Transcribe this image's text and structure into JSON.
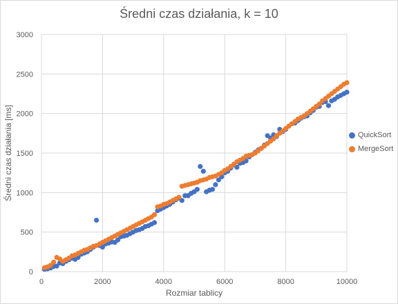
{
  "chart_data": {
    "type": "scatter",
    "title": "Średni czas działania, k = 10",
    "xlabel": "Rozmiar tablicy",
    "ylabel": "Średni czas działania [ms]",
    "xlim": [
      0,
      10000
    ],
    "ylim": [
      0,
      3000
    ],
    "xticks": [
      0,
      2000,
      4000,
      6000,
      8000,
      10000
    ],
    "yticks": [
      0,
      500,
      1000,
      1500,
      2000,
      2500,
      3000
    ],
    "xtick_labels": [
      "0",
      "2000",
      "4000",
      "6000",
      "8000",
      "10000"
    ],
    "ytick_labels": [
      "0",
      "500",
      "1000",
      "1500",
      "2000",
      "2500",
      "3000"
    ],
    "grid": "major, both axes",
    "legend_position": "right",
    "series": [
      {
        "name": "QuickSort",
        "color": "#4472c4",
        "points": [
          [
            100,
            30
          ],
          [
            200,
            35
          ],
          [
            300,
            45
          ],
          [
            400,
            65
          ],
          [
            500,
            70
          ],
          [
            600,
            110
          ],
          [
            700,
            100
          ],
          [
            800,
            130
          ],
          [
            900,
            150
          ],
          [
            1000,
            170
          ],
          [
            1100,
            155
          ],
          [
            1200,
            180
          ],
          [
            1300,
            220
          ],
          [
            1400,
            235
          ],
          [
            1500,
            250
          ],
          [
            1600,
            280
          ],
          [
            1700,
            310
          ],
          [
            1800,
            650
          ],
          [
            1900,
            330
          ],
          [
            2000,
            310
          ],
          [
            2100,
            350
          ],
          [
            2200,
            360
          ],
          [
            2300,
            375
          ],
          [
            2400,
            370
          ],
          [
            2500,
            400
          ],
          [
            2600,
            440
          ],
          [
            2700,
            450
          ],
          [
            2800,
            460
          ],
          [
            2900,
            480
          ],
          [
            3000,
            500
          ],
          [
            3100,
            520
          ],
          [
            3200,
            530
          ],
          [
            3300,
            545
          ],
          [
            3400,
            570
          ],
          [
            3500,
            580
          ],
          [
            3600,
            600
          ],
          [
            3700,
            620
          ],
          [
            3800,
            770
          ],
          [
            3900,
            790
          ],
          [
            4000,
            810
          ],
          [
            4100,
            830
          ],
          [
            4200,
            850
          ],
          [
            4300,
            880
          ],
          [
            4400,
            910
          ],
          [
            4500,
            930
          ],
          [
            4600,
            900
          ],
          [
            4700,
            960
          ],
          [
            4800,
            960
          ],
          [
            4900,
            990
          ],
          [
            5000,
            1010
          ],
          [
            5100,
            1040
          ],
          [
            5200,
            1330
          ],
          [
            5300,
            1270
          ],
          [
            5400,
            1010
          ],
          [
            5500,
            1030
          ],
          [
            5600,
            1040
          ],
          [
            5700,
            1100
          ],
          [
            5800,
            1160
          ],
          [
            5900,
            1200
          ],
          [
            6000,
            1250
          ],
          [
            6100,
            1270
          ],
          [
            6200,
            1310
          ],
          [
            6300,
            1350
          ],
          [
            6400,
            1320
          ],
          [
            6500,
            1370
          ],
          [
            6600,
            1380
          ],
          [
            6700,
            1400
          ],
          [
            6800,
            1450
          ],
          [
            6900,
            1480
          ],
          [
            7000,
            1510
          ],
          [
            7100,
            1540
          ],
          [
            7200,
            1560
          ],
          [
            7300,
            1600
          ],
          [
            7400,
            1720
          ],
          [
            7500,
            1690
          ],
          [
            7600,
            1730
          ],
          [
            7700,
            1710
          ],
          [
            7800,
            1800
          ],
          [
            7900,
            1770
          ],
          [
            8000,
            1800
          ],
          [
            8100,
            1840
          ],
          [
            8200,
            1870
          ],
          [
            8300,
            1880
          ],
          [
            8400,
            1910
          ],
          [
            8500,
            1940
          ],
          [
            8600,
            1960
          ],
          [
            8700,
            1970
          ],
          [
            8800,
            2010
          ],
          [
            8900,
            2040
          ],
          [
            9000,
            2080
          ],
          [
            9100,
            2090
          ],
          [
            9200,
            2140
          ],
          [
            9300,
            2150
          ],
          [
            9400,
            2100
          ],
          [
            9500,
            2160
          ],
          [
            9600,
            2180
          ],
          [
            9700,
            2210
          ],
          [
            9800,
            2230
          ],
          [
            9900,
            2250
          ],
          [
            10000,
            2270
          ]
        ]
      },
      {
        "name": "MergeSort",
        "color": "#ed7d31",
        "points": [
          [
            100,
            50
          ],
          [
            200,
            60
          ],
          [
            300,
            80
          ],
          [
            400,
            120
          ],
          [
            500,
            180
          ],
          [
            600,
            160
          ],
          [
            700,
            130
          ],
          [
            800,
            150
          ],
          [
            900,
            170
          ],
          [
            1000,
            200
          ],
          [
            1100,
            210
          ],
          [
            1200,
            230
          ],
          [
            1300,
            250
          ],
          [
            1400,
            270
          ],
          [
            1500,
            280
          ],
          [
            1600,
            300
          ],
          [
            1700,
            320
          ],
          [
            1800,
            330
          ],
          [
            1900,
            350
          ],
          [
            2000,
            370
          ],
          [
            2100,
            390
          ],
          [
            2200,
            410
          ],
          [
            2300,
            430
          ],
          [
            2400,
            450
          ],
          [
            2500,
            470
          ],
          [
            2600,
            490
          ],
          [
            2700,
            510
          ],
          [
            2800,
            530
          ],
          [
            2900,
            550
          ],
          [
            3000,
            570
          ],
          [
            3100,
            590
          ],
          [
            3200,
            610
          ],
          [
            3300,
            630
          ],
          [
            3400,
            650
          ],
          [
            3500,
            670
          ],
          [
            3600,
            690
          ],
          [
            3700,
            720
          ],
          [
            3800,
            820
          ],
          [
            3900,
            830
          ],
          [
            4000,
            850
          ],
          [
            4100,
            860
          ],
          [
            4200,
            880
          ],
          [
            4300,
            900
          ],
          [
            4400,
            920
          ],
          [
            4500,
            940
          ],
          [
            4600,
            1080
          ],
          [
            4700,
            1090
          ],
          [
            4800,
            1100
          ],
          [
            4900,
            1110
          ],
          [
            5000,
            1120
          ],
          [
            5100,
            1130
          ],
          [
            5200,
            1150
          ],
          [
            5300,
            1160
          ],
          [
            5400,
            1170
          ],
          [
            5500,
            1190
          ],
          [
            5600,
            1200
          ],
          [
            5700,
            1210
          ],
          [
            5800,
            1230
          ],
          [
            5900,
            1250
          ],
          [
            6000,
            1280
          ],
          [
            6100,
            1300
          ],
          [
            6200,
            1330
          ],
          [
            6300,
            1360
          ],
          [
            6400,
            1390
          ],
          [
            6500,
            1410
          ],
          [
            6600,
            1430
          ],
          [
            6700,
            1460
          ],
          [
            6800,
            1470
          ],
          [
            6900,
            1480
          ],
          [
            7000,
            1500
          ],
          [
            7100,
            1530
          ],
          [
            7200,
            1560
          ],
          [
            7300,
            1590
          ],
          [
            7400,
            1620
          ],
          [
            7500,
            1650
          ],
          [
            7600,
            1680
          ],
          [
            7700,
            1720
          ],
          [
            7800,
            1750
          ],
          [
            7900,
            1780
          ],
          [
            8000,
            1810
          ],
          [
            8100,
            1840
          ],
          [
            8200,
            1870
          ],
          [
            8300,
            1900
          ],
          [
            8400,
            1930
          ],
          [
            8500,
            1950
          ],
          [
            8600,
            1970
          ],
          [
            8700,
            2000
          ],
          [
            8800,
            2030
          ],
          [
            8900,
            2060
          ],
          [
            9000,
            2090
          ],
          [
            9100,
            2120
          ],
          [
            9200,
            2160
          ],
          [
            9300,
            2190
          ],
          [
            9400,
            2220
          ],
          [
            9500,
            2250
          ],
          [
            9600,
            2280
          ],
          [
            9700,
            2310
          ],
          [
            9800,
            2340
          ],
          [
            9900,
            2370
          ],
          [
            10000,
            2390
          ]
        ]
      }
    ]
  }
}
